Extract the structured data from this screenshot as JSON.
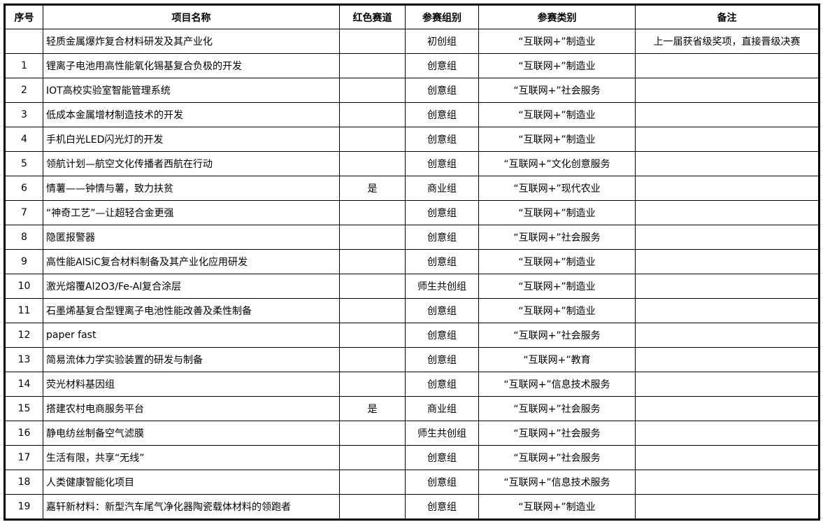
{
  "headers": [
    "序号",
    "项目名称",
    "红色赛道",
    "参赛组别",
    "参赛类别",
    "备注"
  ],
  "rows": [
    {
      "no": "",
      "name": "轻质金属爆炸复合材料研发及其产业化",
      "red": "",
      "group": "初创组",
      "category": "“互联网+”制造业",
      "note": "上一届获省级奖项，直接晋级决赛"
    },
    {
      "no": "1",
      "name": "锂离子电池用高性能氧化锡基复合负极的开发",
      "red": "",
      "group": "创意组",
      "category": "“互联网+”制造业",
      "note": ""
    },
    {
      "no": "2",
      "name": "IOT高校实验室智能管理系统",
      "red": "",
      "group": "创意组",
      "category": "“互联网+”社会服务",
      "note": ""
    },
    {
      "no": "3",
      "name": "低成本金属增材制造技术的开发",
      "red": "",
      "group": "创意组",
      "category": "“互联网+”制造业",
      "note": ""
    },
    {
      "no": "4",
      "name": "手机白光LED闪光灯的开发",
      "red": "",
      "group": "创意组",
      "category": "“互联网+”制造业",
      "note": ""
    },
    {
      "no": "5",
      "name": "领航计划—航空文化传播者西航在行动",
      "red": "",
      "group": "创意组",
      "category": "“互联网+”文化创意服务",
      "note": ""
    },
    {
      "no": "6",
      "name": "情薯——钟情与薯，致力扶贫",
      "red": "是",
      "group": "商业组",
      "category": "“互联网+”现代农业",
      "note": ""
    },
    {
      "no": "7",
      "name": "“神奇工艺”—让超轻合金更强",
      "red": "",
      "group": "创意组",
      "category": "“互联网+”制造业",
      "note": ""
    },
    {
      "no": "8",
      "name": "隐匿报警器",
      "red": "",
      "group": "创意组",
      "category": "“互联网+”社会服务",
      "note": ""
    },
    {
      "no": "9",
      "name": "高性能AlSiC复合材料制备及其产业化应用研发",
      "red": "",
      "group": "创意组",
      "category": "“互联网+”制造业",
      "note": ""
    },
    {
      "no": "10",
      "name": "激光熔覆Al2O3/Fe-Al复合涂层",
      "red": "",
      "group": "师生共创组",
      "category": "“互联网+”制造业",
      "note": ""
    },
    {
      "no": "11",
      "name": "石墨烯基复合型锂离子电池性能改善及柔性制备",
      "red": "",
      "group": "创意组",
      "category": "“互联网+”制造业",
      "note": ""
    },
    {
      "no": "12",
      "name": "paper fast",
      "red": "",
      "group": "创意组",
      "category": "“互联网+”社会服务",
      "note": ""
    },
    {
      "no": "13",
      "name": "简易流体力学实验装置的研发与制备",
      "red": "",
      "group": "创意组",
      "category": "“互联网+”教育",
      "note": ""
    },
    {
      "no": "14",
      "name": "荧光材料基因组",
      "red": "",
      "group": "创意组",
      "category": "“互联网+”信息技术服务",
      "note": ""
    },
    {
      "no": "15",
      "name": "搭建农村电商服务平台",
      "red": "是",
      "group": "商业组",
      "category": "“互联网+”社会服务",
      "note": ""
    },
    {
      "no": "16",
      "name": "静电纺丝制备空气滤膜",
      "red": "",
      "group": "师生共创组",
      "category": "“互联网+”社会服务",
      "note": ""
    },
    {
      "no": "17",
      "name": "生活有限，共享“无线”",
      "red": "",
      "group": "创意组",
      "category": "“互联网+”社会服务",
      "note": ""
    },
    {
      "no": "18",
      "name": "人类健康智能化项目",
      "red": "",
      "group": "创意组",
      "category": "“互联网+”信息技术服务",
      "note": ""
    },
    {
      "no": "19",
      "name": "嘉轩新材料：新型汽车尾气净化器陶瓷载体材料的领跑者",
      "red": "",
      "group": "创意组",
      "category": "“互联网+”制造业",
      "note": ""
    }
  ]
}
